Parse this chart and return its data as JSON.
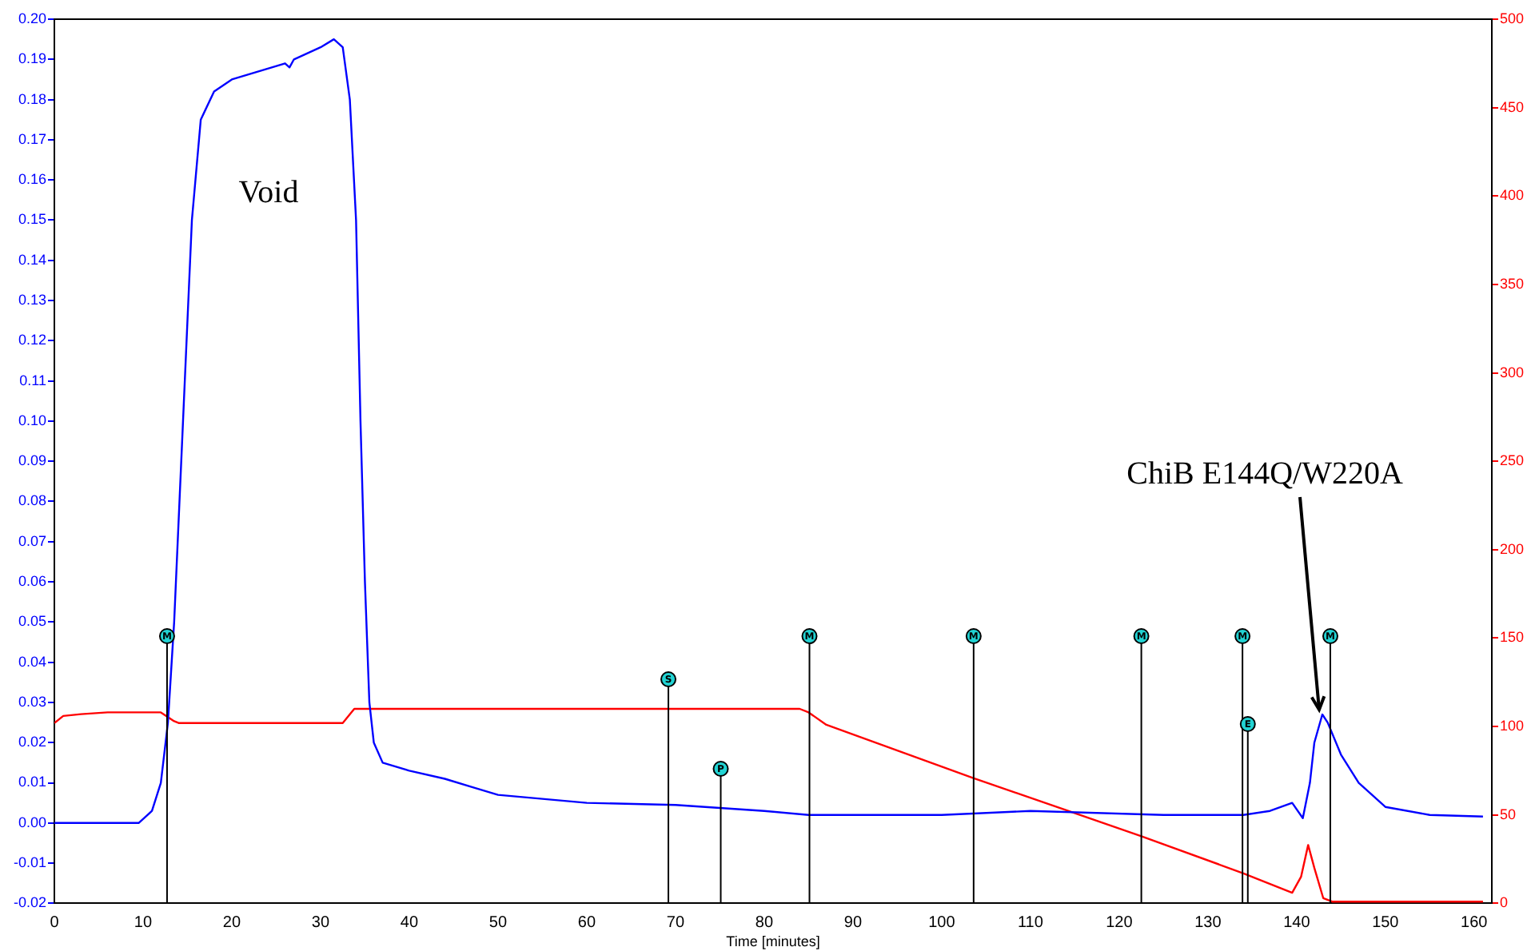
{
  "chart_data": {
    "type": "line",
    "xlabel": "Time [minutes]",
    "xlim": [
      0,
      162
    ],
    "xticks": [
      0,
      10,
      20,
      30,
      40,
      50,
      60,
      70,
      80,
      90,
      100,
      110,
      120,
      130,
      140,
      150,
      160
    ],
    "ylim": [
      -0.02,
      0.2
    ],
    "yticks": [
      -0.02,
      -0.01,
      {
        "value": 0,
        "label": "0.00"
      },
      0.01,
      0.02,
      0.03,
      0.04,
      0.05,
      0.06,
      0.07,
      0.08,
      0.09,
      {
        "value": 0.1,
        "label": "0.10"
      },
      0.11,
      0.12,
      0.13,
      0.14,
      0.15,
      0.16,
      0.17,
      0.18,
      0.19,
      {
        "value": 0.2,
        "label": "0.20"
      }
    ],
    "y2lim": [
      0,
      500
    ],
    "y2ticks": [
      0,
      50,
      100,
      150,
      200,
      250,
      300,
      350,
      400,
      450,
      500
    ],
    "grid": false,
    "legend": false,
    "series": [
      {
        "color": "#0000ff",
        "x": [
          0,
          9.5,
          11,
          12,
          12.8,
          13.5,
          14.5,
          15.5,
          16.5,
          18,
          20,
          26,
          26.5,
          27,
          30,
          31.5,
          32.5,
          33.3,
          34,
          34.5,
          35,
          35.5,
          36,
          37,
          40,
          44,
          47,
          50,
          60,
          70,
          80,
          85,
          100,
          110,
          125,
          134,
          137,
          139.5,
          140.7,
          141.5,
          142,
          142.9,
          143.5,
          145,
          147,
          150,
          155,
          161
        ],
        "values": [
          0,
          0,
          0.003,
          0.01,
          0.025,
          0.05,
          0.1,
          0.15,
          0.175,
          0.182,
          0.185,
          0.189,
          0.188,
          0.19,
          0.193,
          0.195,
          0.193,
          0.18,
          0.15,
          0.1,
          0.06,
          0.03,
          0.02,
          0.015,
          0.013,
          0.011,
          0.009,
          0.007,
          0.005,
          0.0045,
          0.003,
          0.002,
          0.002,
          0.003,
          0.002,
          0.002,
          0.003,
          0.005,
          0.0012,
          0.01,
          0.02,
          0.027,
          0.025,
          0.017,
          0.01,
          0.004,
          0.002,
          0.0016
        ]
      },
      {
        "color": "#ff0000",
        "axis": "y2",
        "x": [
          0,
          1,
          3,
          6,
          12,
          13.5,
          14,
          20,
          32.5,
          33.8,
          40,
          60,
          84,
          85,
          87,
          103.5,
          122.5,
          134,
          139.5,
          140.5,
          141.3,
          142,
          143,
          144,
          161
        ],
        "values": [
          102,
          106,
          107,
          108,
          108,
          103,
          102,
          102,
          102,
          110,
          110,
          110,
          110,
          108,
          101,
          71,
          38,
          17,
          6,
          15,
          33,
          20,
          3,
          1,
          1
        ]
      }
    ],
    "ref_lines": [
      {
        "axis": "x",
        "value": 12.7,
        "label": "M"
      },
      {
        "axis": "x",
        "value": 69.2,
        "label": "S"
      },
      {
        "axis": "x",
        "value": 75.1,
        "label": "P"
      },
      {
        "axis": "x",
        "value": 85.1,
        "label": "M"
      },
      {
        "axis": "x",
        "value": 103.6,
        "label": "M"
      },
      {
        "axis": "x",
        "value": 122.5,
        "label": "M"
      },
      {
        "axis": "x",
        "value": 133.9,
        "label": "M"
      },
      {
        "axis": "x",
        "value": 134.5,
        "label": "E"
      },
      {
        "axis": "x",
        "value": 143.8,
        "label": "M"
      }
    ],
    "annotations": [
      "Void",
      {
        "text": "ChiB E144Q/W220A",
        "x": 142.9,
        "y": 0.027
      }
    ]
  }
}
